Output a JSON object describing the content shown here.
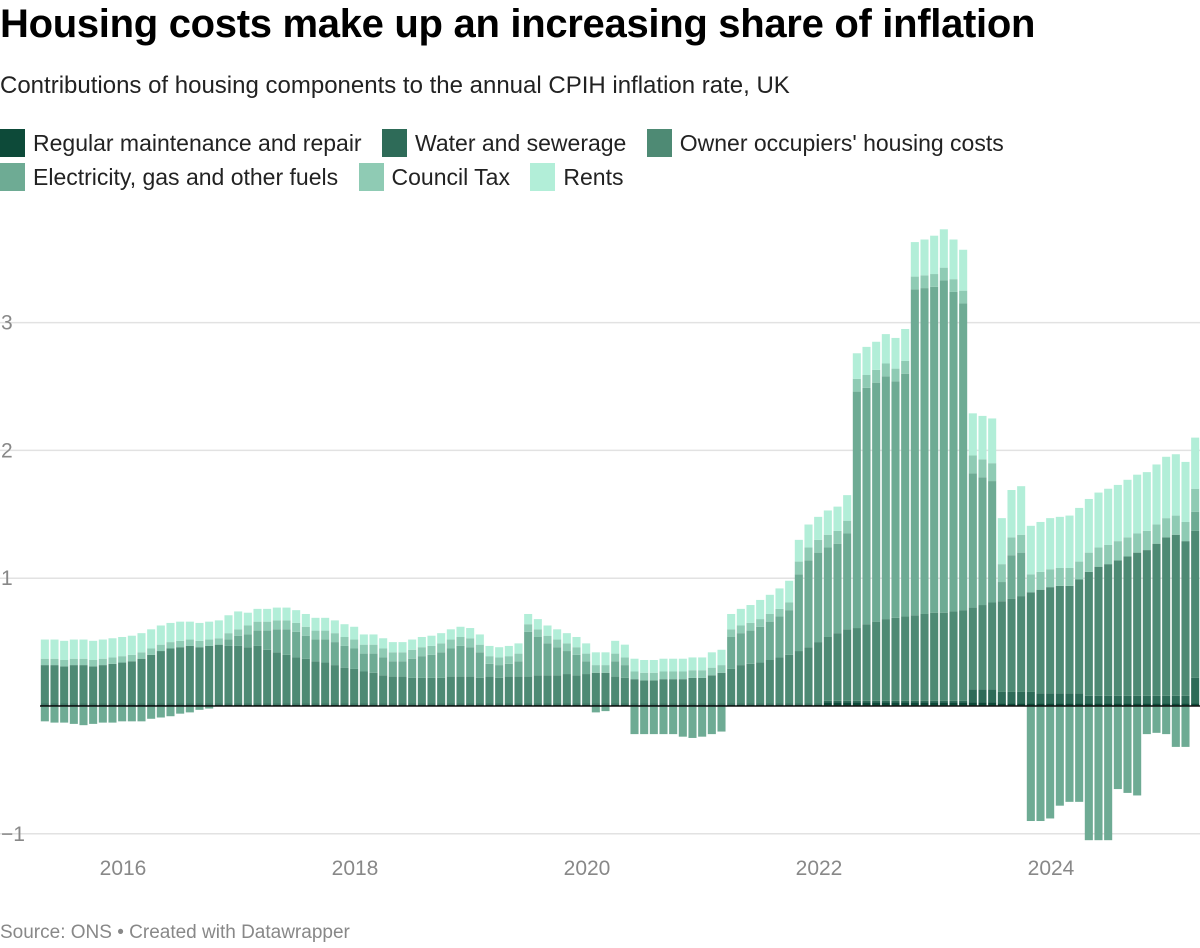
{
  "title": "Housing costs make up an increasing share of inflation",
  "subtitle": "Contributions of housing components to the annual CPIH inflation rate, UK",
  "source": "Source: ONS • Created with Datawrapper",
  "chart_data": {
    "type": "bar",
    "stacked": true,
    "title": "Housing costs make up an increasing share of inflation",
    "subtitle": "Contributions of housing components to the annual CPIH inflation rate, UK",
    "xlabel": "",
    "ylabel": "",
    "start_month": "2015-04",
    "frequency": "monthly",
    "ylim": [
      -1.2,
      3.7
    ],
    "yticks": [
      -1,
      0,
      1,
      2,
      3
    ],
    "ytick_labels": [
      "−1",
      "",
      "1",
      "2",
      "3"
    ],
    "xticks": [
      "2016",
      "2018",
      "2020",
      "2022",
      "2024"
    ],
    "grid": true,
    "legend_position": "top",
    "series": [
      {
        "name": "Regular maintenance and repair",
        "color": "#0d4a39",
        "values": [
          0.01,
          0.01,
          0.01,
          0.01,
          0.01,
          0.01,
          0.01,
          0.01,
          0.01,
          0.01,
          0.01,
          0.01,
          0.01,
          0.01,
          0.01,
          0.01,
          0.01,
          0.01,
          0.01,
          0.01,
          0.01,
          0.01,
          0.01,
          0.01,
          0.01,
          0.01,
          0.01,
          0.01,
          0.01,
          0.01,
          0.01,
          0.01,
          0.01,
          0.01,
          0.01,
          0.01,
          0.01,
          0.01,
          0.01,
          0.01,
          0.01,
          0.01,
          0.01,
          0.01,
          0.01,
          0.01,
          0.01,
          0.01,
          0.01,
          0.01,
          0.01,
          0.01,
          0.01,
          0.01,
          0.01,
          0.01,
          0.01,
          0.01,
          0.01,
          0.01,
          0.01,
          0.01,
          0.01,
          0.01,
          0.01,
          0.01,
          0.01,
          0.01,
          0.01,
          0.01,
          0.01,
          0.01,
          0.01,
          0.01,
          0.01,
          0.01,
          0.01,
          0.01,
          0.01,
          0.01,
          0.01,
          0.03,
          0.03,
          0.03,
          0.03,
          0.03,
          0.03,
          0.03,
          0.03,
          0.03,
          0.03,
          0.03,
          0.03,
          0.03,
          0.03,
          0.03,
          0.03,
          0.03,
          0.03,
          0.02,
          0.02,
          0.02,
          0.02,
          0.02,
          0.02,
          0.02,
          0.02,
          0.02,
          0.02,
          0.02,
          0.02,
          0.02,
          0.02,
          0.02,
          0.02,
          0.02,
          0.02,
          0.02,
          0.02,
          0.02
        ]
      },
      {
        "name": "Water and sewerage",
        "color": "#2e6b58",
        "values": [
          0.01,
          0.01,
          0.01,
          0.01,
          0.01,
          0.01,
          0.01,
          0.01,
          0.01,
          0.01,
          0.01,
          0.01,
          0.01,
          0.01,
          0.01,
          0.01,
          0.01,
          0.01,
          0.01,
          0.01,
          0.01,
          0.01,
          0.01,
          0.01,
          0.01,
          0.01,
          0.01,
          0.01,
          0.01,
          0.01,
          0.01,
          0.01,
          0.01,
          0.01,
          0.01,
          0.01,
          0.01,
          0.01,
          0.01,
          0.01,
          0.01,
          0.01,
          0.01,
          0.01,
          0.01,
          0.01,
          0.01,
          0.01,
          0.01,
          0.01,
          0.01,
          0.01,
          0.01,
          0.01,
          0.01,
          0.01,
          0.01,
          0.01,
          0.01,
          0.01,
          0.01,
          0.01,
          0.01,
          0.01,
          0.01,
          0.01,
          0.01,
          0.01,
          0.01,
          0.01,
          0.01,
          0.01,
          0.01,
          0.01,
          0.01,
          0.01,
          0.01,
          0.01,
          0.01,
          0.01,
          0.01,
          0.01,
          0.01,
          0.01,
          0.01,
          0.01,
          0.01,
          0.01,
          0.01,
          0.01,
          0.01,
          0.01,
          0.01,
          0.01,
          0.01,
          0.01,
          0.1,
          0.1,
          0.1,
          0.09,
          0.09,
          0.09,
          0.09,
          0.08,
          0.08,
          0.08,
          0.08,
          0.08,
          0.06,
          0.06,
          0.06,
          0.06,
          0.06,
          0.06,
          0.06,
          0.06,
          0.06,
          0.06,
          0.06,
          0.2
        ]
      },
      {
        "name": "Owner occupiers' housing costs",
        "color": "#4e8a74",
        "values": [
          0.3,
          0.3,
          0.29,
          0.3,
          0.3,
          0.29,
          0.3,
          0.31,
          0.32,
          0.33,
          0.35,
          0.38,
          0.41,
          0.43,
          0.44,
          0.45,
          0.44,
          0.45,
          0.46,
          0.45,
          0.45,
          0.44,
          0.45,
          0.42,
          0.4,
          0.38,
          0.36,
          0.35,
          0.33,
          0.32,
          0.3,
          0.28,
          0.27,
          0.25,
          0.24,
          0.22,
          0.21,
          0.21,
          0.2,
          0.2,
          0.2,
          0.2,
          0.21,
          0.21,
          0.21,
          0.2,
          0.21,
          0.2,
          0.21,
          0.21,
          0.21,
          0.22,
          0.22,
          0.22,
          0.23,
          0.22,
          0.23,
          0.24,
          0.24,
          0.21,
          0.2,
          0.19,
          0.18,
          0.18,
          0.19,
          0.19,
          0.19,
          0.2,
          0.2,
          0.22,
          0.24,
          0.27,
          0.3,
          0.31,
          0.32,
          0.34,
          0.36,
          0.38,
          0.41,
          0.44,
          0.48,
          0.5,
          0.53,
          0.56,
          0.57,
          0.6,
          0.62,
          0.64,
          0.65,
          0.66,
          0.67,
          0.68,
          0.69,
          0.69,
          0.7,
          0.71,
          0.64,
          0.66,
          0.68,
          0.71,
          0.73,
          0.75,
          0.78,
          0.81,
          0.83,
          0.84,
          0.84,
          0.89,
          0.97,
          1.01,
          1.03,
          1.06,
          1.09,
          1.12,
          1.14,
          1.19,
          1.24,
          1.26,
          1.21,
          1.15
        ]
      },
      {
        "name": "Electricity, gas and other fuels",
        "color": "#6eab94",
        "values": [
          -0.12,
          -0.13,
          -0.13,
          -0.14,
          -0.15,
          -0.14,
          -0.13,
          -0.13,
          -0.12,
          -0.12,
          -0.12,
          -0.1,
          -0.09,
          -0.08,
          -0.06,
          -0.05,
          -0.03,
          -0.02,
          0.0,
          0.05,
          0.08,
          0.1,
          0.12,
          0.15,
          0.18,
          0.2,
          0.2,
          0.18,
          0.17,
          0.18,
          0.18,
          0.17,
          0.16,
          0.14,
          0.15,
          0.14,
          0.12,
          0.12,
          0.15,
          0.17,
          0.18,
          0.2,
          0.22,
          0.24,
          0.23,
          0.2,
          0.1,
          0.1,
          0.1,
          0.12,
          0.35,
          0.3,
          0.25,
          0.22,
          0.18,
          0.16,
          0.1,
          -0.05,
          -0.04,
          0.12,
          0.1,
          -0.22,
          -0.22,
          -0.22,
          -0.22,
          -0.22,
          -0.24,
          -0.25,
          -0.24,
          -0.22,
          -0.2,
          0.25,
          0.25,
          0.26,
          0.28,
          0.3,
          0.32,
          0.35,
          0.6,
          0.68,
          0.7,
          0.7,
          0.7,
          0.75,
          1.85,
          1.85,
          1.87,
          1.9,
          1.85,
          1.9,
          2.55,
          2.55,
          2.55,
          2.6,
          2.5,
          2.4,
          1.05,
          1.0,
          0.95,
          0.15,
          0.34,
          0.34,
          -0.9,
          -0.9,
          -0.88,
          -0.78,
          -0.75,
          -0.75,
          -1.05,
          -1.05,
          -1.05,
          -0.65,
          -0.68,
          -0.7,
          -0.22,
          -0.21,
          -0.22,
          -0.32,
          -0.32,
          0.15
        ]
      },
      {
        "name": "Council Tax",
        "color": "#8fcbb4",
        "values": [
          0.05,
          0.05,
          0.05,
          0.05,
          0.05,
          0.05,
          0.05,
          0.05,
          0.05,
          0.05,
          0.05,
          0.05,
          0.05,
          0.05,
          0.05,
          0.05,
          0.05,
          0.05,
          0.05,
          0.05,
          0.05,
          0.07,
          0.07,
          0.07,
          0.07,
          0.07,
          0.07,
          0.07,
          0.07,
          0.07,
          0.07,
          0.07,
          0.07,
          0.07,
          0.07,
          0.07,
          0.07,
          0.07,
          0.07,
          0.07,
          0.07,
          0.07,
          0.07,
          0.07,
          0.07,
          0.06,
          0.06,
          0.06,
          0.06,
          0.06,
          0.06,
          0.06,
          0.06,
          0.06,
          0.06,
          0.06,
          0.06,
          0.06,
          0.06,
          0.06,
          0.06,
          0.06,
          0.06,
          0.06,
          0.06,
          0.06,
          0.06,
          0.06,
          0.06,
          0.06,
          0.06,
          0.06,
          0.06,
          0.06,
          0.06,
          0.06,
          0.06,
          0.06,
          0.1,
          0.1,
          0.1,
          0.1,
          0.1,
          0.1,
          0.1,
          0.1,
          0.1,
          0.1,
          0.1,
          0.1,
          0.1,
          0.1,
          0.1,
          0.1,
          0.1,
          0.1,
          0.14,
          0.14,
          0.14,
          0.14,
          0.14,
          0.14,
          0.14,
          0.14,
          0.14,
          0.14,
          0.14,
          0.14,
          0.15,
          0.15,
          0.15,
          0.15,
          0.15,
          0.15,
          0.15,
          0.15,
          0.15,
          0.15,
          0.15,
          0.18
        ]
      },
      {
        "name": "Rents",
        "color": "#b2eed8",
        "values": [
          0.15,
          0.15,
          0.15,
          0.15,
          0.15,
          0.15,
          0.15,
          0.15,
          0.15,
          0.15,
          0.15,
          0.15,
          0.15,
          0.15,
          0.15,
          0.14,
          0.14,
          0.14,
          0.14,
          0.14,
          0.14,
          0.1,
          0.1,
          0.1,
          0.1,
          0.1,
          0.1,
          0.1,
          0.1,
          0.1,
          0.1,
          0.1,
          0.1,
          0.08,
          0.08,
          0.08,
          0.08,
          0.08,
          0.08,
          0.08,
          0.08,
          0.08,
          0.08,
          0.08,
          0.08,
          0.08,
          0.08,
          0.08,
          0.08,
          0.08,
          0.08,
          0.08,
          0.08,
          0.08,
          0.08,
          0.08,
          0.08,
          0.1,
          0.1,
          0.1,
          0.1,
          0.1,
          0.1,
          0.1,
          0.1,
          0.1,
          0.1,
          0.1,
          0.1,
          0.12,
          0.12,
          0.12,
          0.13,
          0.14,
          0.15,
          0.15,
          0.16,
          0.17,
          0.17,
          0.18,
          0.18,
          0.19,
          0.19,
          0.2,
          0.2,
          0.22,
          0.22,
          0.23,
          0.24,
          0.25,
          0.27,
          0.28,
          0.3,
          0.3,
          0.31,
          0.32,
          0.33,
          0.34,
          0.35,
          0.36,
          0.37,
          0.38,
          0.38,
          0.39,
          0.4,
          0.4,
          0.41,
          0.42,
          0.42,
          0.43,
          0.44,
          0.44,
          0.45,
          0.46,
          0.46,
          0.47,
          0.48,
          0.48,
          0.47,
          0.4
        ]
      }
    ]
  }
}
